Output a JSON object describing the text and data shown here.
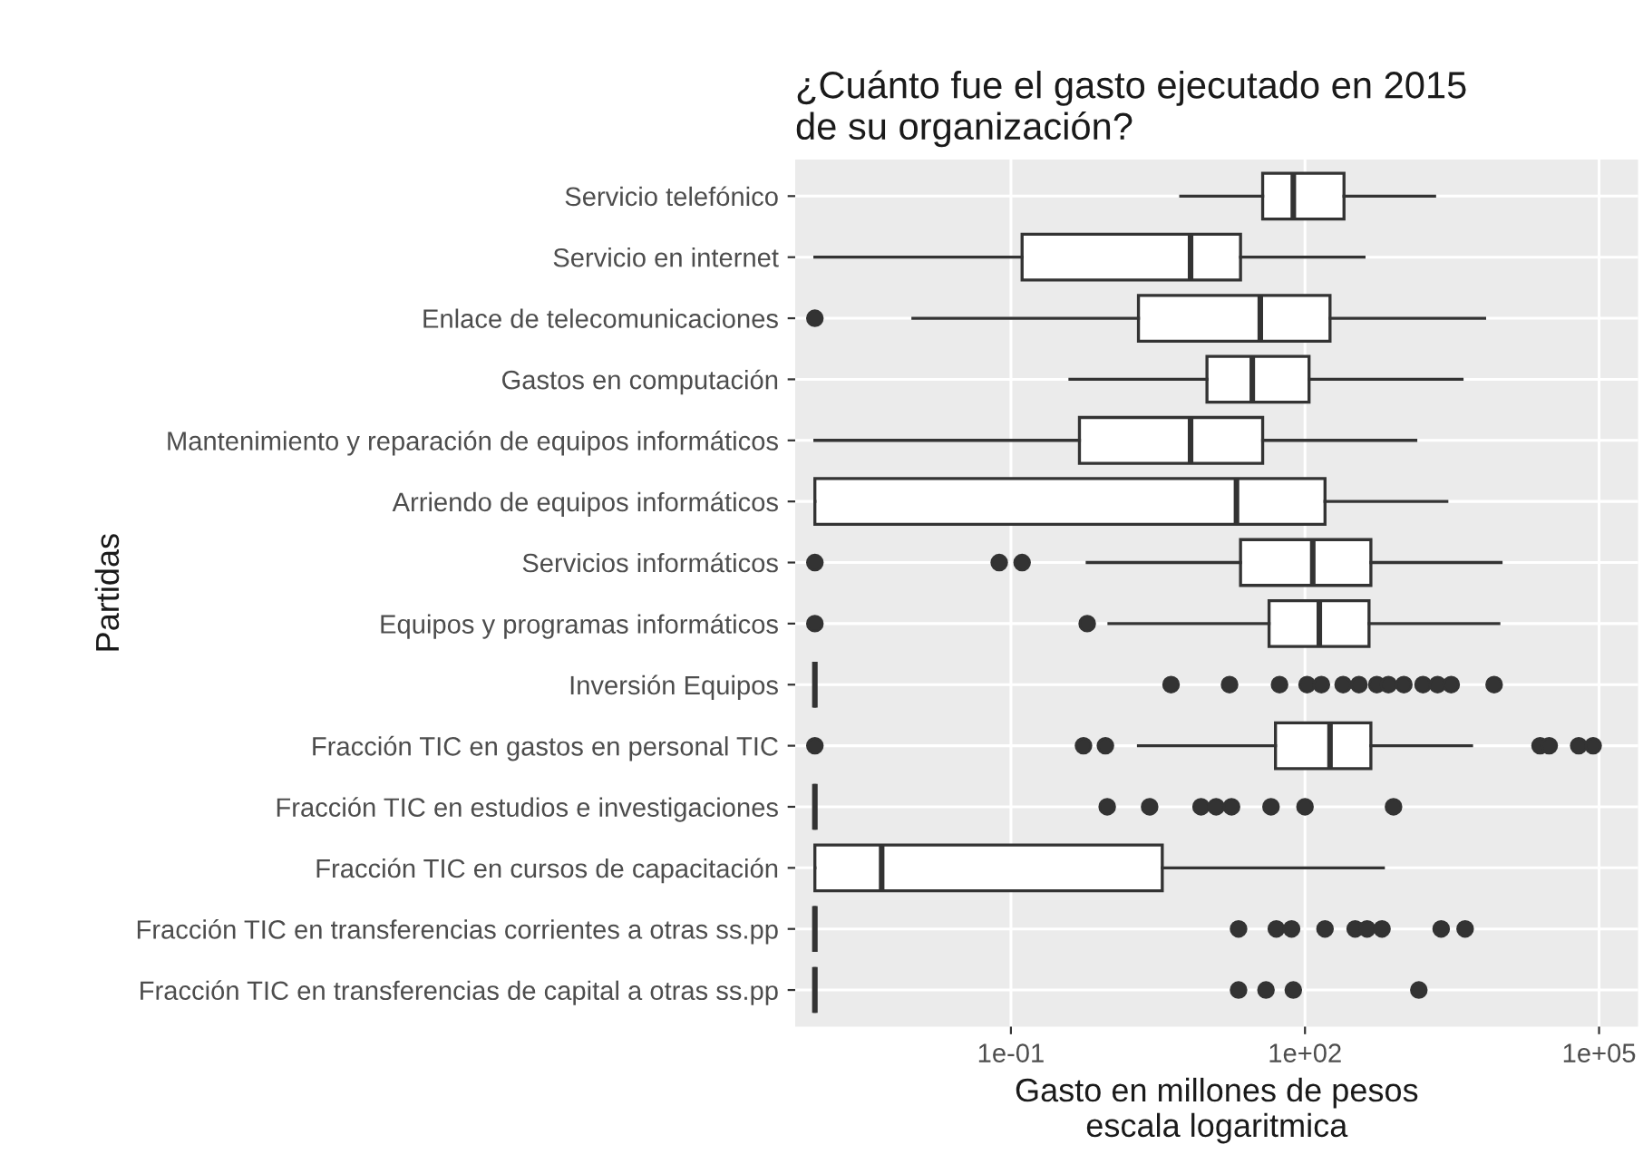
{
  "chart_data": {
    "type": "box",
    "orientation": "horizontal",
    "log": "x",
    "title": "¿Cuánto fue el gasto ejecutado en 2015\nde su organización?",
    "xlabel": "Gasto en millones de pesos\nescala logaritmica",
    "ylabel": "Partidas",
    "categories": [
      "Servicio telefónico",
      "Servicio en internet",
      "Enlace de telecomunicaciones",
      "Gastos en computación",
      "Mantenimiento y reparación de equipos informáticos",
      "Arriendo de equipos informáticos",
      "Servicios informáticos",
      "Equipos y programas informáticos",
      "Inversión Equipos",
      "Fracción TIC en gastos en personal TIC",
      "Fracción TIC en estudios e investigaciones",
      "Fracción TIC en cursos de capacitación",
      "Fracción TIC en transferencias corrientes a otras ss.pp",
      "Fracción TIC en transferencias de capital a otras ss.pp"
    ],
    "boxes": [
      {
        "low": 5.4,
        "q1": 37,
        "median": 76,
        "q3": 250,
        "high": 2100
      },
      {
        "low": 0.001,
        "q1": 0.13,
        "median": 6.8,
        "q3": 22,
        "high": 400
      },
      {
        "low": 0.01,
        "q1": 2,
        "median": 35,
        "q3": 180,
        "high": 6800,
        "outliers": [
          0.001
        ]
      },
      {
        "low": 0.4,
        "q1": 10,
        "median": 29,
        "q3": 110,
        "high": 4000
      },
      {
        "low": 0.001,
        "q1": 0.5,
        "median": 6.8,
        "q3": 37,
        "high": 1350
      },
      {
        "low": 0.001,
        "q1": 0.001,
        "median": 20,
        "q3": 160,
        "high": 2800
      },
      {
        "low": 0.6,
        "q1": 22,
        "median": 120,
        "q3": 470,
        "high": 10000,
        "outliers": [
          0.001,
          0.076,
          0.13
        ]
      },
      {
        "low": 1,
        "q1": 43,
        "median": 140,
        "q3": 450,
        "high": 9500,
        "outliers": [
          0.001,
          0.6
        ]
      },
      {
        "low": 0.001,
        "q1": 0.001,
        "median": 0.001,
        "q3": 0.001,
        "high": 0.001,
        "outliers": [
          4.3,
          17,
          55,
          105,
          147,
          245,
          355,
          540,
          710,
          1020,
          1600,
          2250,
          3100,
          8500
        ]
      },
      {
        "low": 2,
        "q1": 50,
        "median": 180,
        "q3": 470,
        "high": 5000,
        "outliers": [
          0.001,
          0.55,
          0.92,
          25000,
          31000,
          62000,
          87000
        ]
      },
      {
        "low": 0.001,
        "q1": 0.001,
        "median": 0.001,
        "q3": 0.001,
        "high": 0.001,
        "outliers": [
          0.96,
          2.6,
          8.7,
          12.4,
          17.8,
          45,
          100,
          800
        ]
      },
      {
        "low": 0.001,
        "q1": 0.001,
        "median": 0.0048,
        "q3": 3.5,
        "high": 630
      },
      {
        "low": 0.001,
        "q1": 0.001,
        "median": 0.001,
        "q3": 0.001,
        "high": 0.001,
        "outliers": [
          21,
          51,
          73,
          160,
          325,
          430,
          610,
          2450,
          4300
        ]
      },
      {
        "low": 0.001,
        "q1": 0.001,
        "median": 0.001,
        "q3": 0.001,
        "high": 0.001,
        "outliers": [
          21,
          40,
          76,
          1450
        ]
      }
    ],
    "xlim": [
      0.00063,
      250000
    ],
    "xticks": [
      {
        "value": 0.1,
        "label": "1e-01"
      },
      {
        "value": 100,
        "label": "1e+02"
      },
      {
        "value": 100000,
        "label": "1e+05"
      }
    ],
    "grid": true
  }
}
